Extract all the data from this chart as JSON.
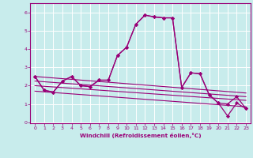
{
  "xlabel": "Windchill (Refroidissement éolien,°C)",
  "background_color": "#c8ecec",
  "grid_color": "#ffffff",
  "line_color": "#990077",
  "xlim": [
    -0.5,
    23.5
  ],
  "ylim": [
    -0.05,
    6.5
  ],
  "xticks": [
    0,
    1,
    2,
    3,
    4,
    5,
    6,
    7,
    8,
    9,
    10,
    11,
    12,
    13,
    14,
    15,
    16,
    17,
    18,
    19,
    20,
    21,
    22,
    23
  ],
  "yticks": [
    0,
    1,
    2,
    3,
    4,
    5,
    6
  ],
  "series1_x": [
    0,
    1,
    2,
    3,
    4,
    5,
    6,
    7,
    8,
    9,
    10,
    11,
    12,
    13,
    14,
    15,
    16,
    17,
    18,
    19,
    20,
    21,
    22,
    23
  ],
  "series1_y": [
    2.5,
    1.75,
    1.65,
    2.25,
    2.5,
    2.0,
    1.95,
    2.3,
    2.3,
    3.65,
    4.1,
    5.35,
    5.85,
    5.75,
    5.7,
    5.7,
    1.9,
    2.7,
    2.65,
    1.5,
    1.05,
    0.35,
    1.05,
    0.75
  ],
  "series2_x": [
    0,
    1,
    2,
    3,
    4,
    5,
    6,
    7,
    8,
    9,
    10,
    11,
    12,
    13,
    14,
    15,
    16,
    17,
    18,
    19,
    20,
    21,
    22,
    23
  ],
  "series2_y": [
    2.5,
    1.75,
    1.65,
    2.25,
    2.5,
    2.0,
    1.95,
    2.3,
    2.3,
    3.65,
    4.1,
    5.35,
    5.85,
    5.75,
    5.7,
    5.7,
    1.9,
    2.7,
    2.65,
    1.5,
    1.05,
    1.0,
    1.4,
    0.75
  ],
  "straight_lines": [
    {
      "x": [
        0,
        23
      ],
      "y": [
        2.5,
        1.6
      ]
    },
    {
      "x": [
        0,
        23
      ],
      "y": [
        2.25,
        1.4
      ]
    },
    {
      "x": [
        0,
        23
      ],
      "y": [
        2.0,
        1.2
      ]
    },
    {
      "x": [
        0,
        23
      ],
      "y": [
        1.7,
        0.85
      ]
    }
  ]
}
